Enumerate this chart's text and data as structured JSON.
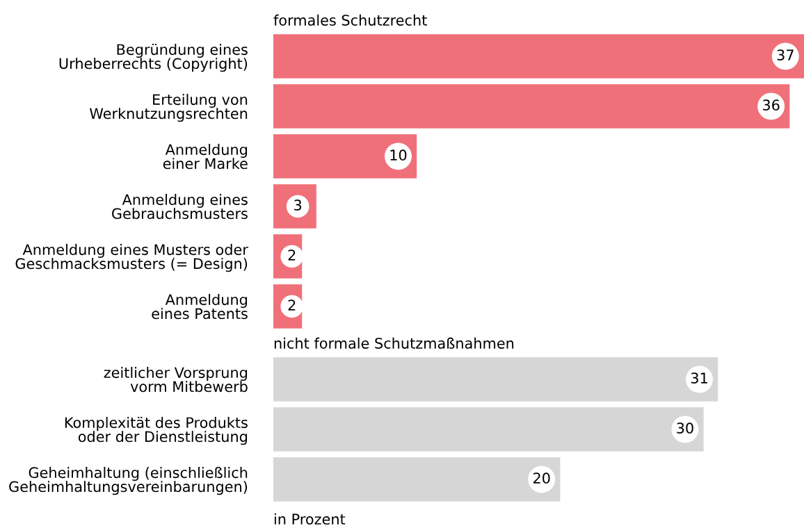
{
  "chart_data": [
    {
      "type": "bar",
      "orientation": "horizontal",
      "title": "formales Schutzrecht",
      "color": "#f0707a",
      "data_labels": true,
      "categories": [
        "Begründung eines\nUrheberrechts (Copyright)",
        "Erteilung von\nWerknutzungsrechten",
        "Anmeldung\neiner Marke",
        "Anmeldung eines\nGebrauchsmusters",
        "Anmeldung eines Musters oder\nGeschmacksmusters (= Design)",
        "Anmeldung\neines Patents"
      ],
      "values": [
        37,
        36,
        10,
        3,
        2,
        2
      ]
    },
    {
      "type": "bar",
      "orientation": "horizontal",
      "title": "nicht formale Schutzmaßnahmen",
      "color": "#d6d6d6",
      "data_labels": true,
      "categories": [
        "zeitlicher Vorsprung\nvorm Mitbewerb",
        "Komplexität des Produkts\noder der Dienstleistung",
        "Geheimhaltung (einschließlich\nGeheimhaltungsvereinbarungen)"
      ],
      "values": [
        31,
        30,
        20
      ],
      "annotations": [
        "in Prozent"
      ]
    }
  ]
}
